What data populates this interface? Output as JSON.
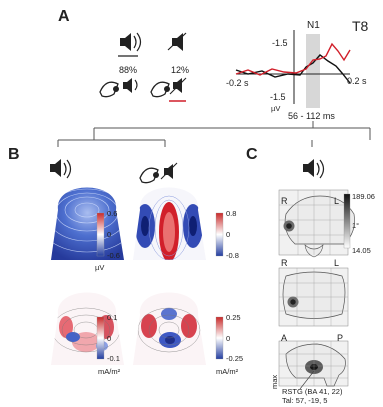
{
  "panels": {
    "a": {
      "letter": "A",
      "percent_sound_shown": "88%",
      "percent_sound_omitted": "12%",
      "erp": {
        "title": "N1",
        "channel": "T8",
        "y_top": "-1.5",
        "y_left": "-1.5",
        "y_bottom": "-1.5",
        "unit": "µV",
        "x_left": "-0.2 s",
        "x_right": "0.2 s",
        "window": "56 - 112 ms"
      }
    },
    "b": {
      "letter": "B",
      "colorbars": [
        {
          "max": "0.6",
          "mid": "0",
          "min": "-0.6",
          "unit": "µV"
        },
        {
          "max": "0.8",
          "mid": "0",
          "min": "-0.8",
          "unit": ""
        },
        {
          "max": "0.1",
          "mid": "0",
          "min": "-0.1",
          "unit": "mA/m²"
        },
        {
          "max": "0.25",
          "mid": "0",
          "min": "-0.25",
          "unit": "mA/m²"
        }
      ]
    },
    "c": {
      "letter": "C",
      "labels": {
        "r1": "R",
        "l1": "L",
        "r2": "R",
        "l2": "L",
        "a": "A",
        "p": "P"
      },
      "scale": {
        "max": "189.06",
        "mid": "1°",
        "min": "14.05"
      },
      "region": "RSTG (BA 41, 22)",
      "coords": "Tal: 57, -19, 5",
      "side_label": "max"
    }
  },
  "colors": {
    "red_trace": "#d11f2a",
    "black_trace": "#111111",
    "window_shade": "#d7d7d7"
  },
  "icons": [
    "speaker-icon",
    "speaker-muted-icon",
    "hand-press-icon"
  ]
}
